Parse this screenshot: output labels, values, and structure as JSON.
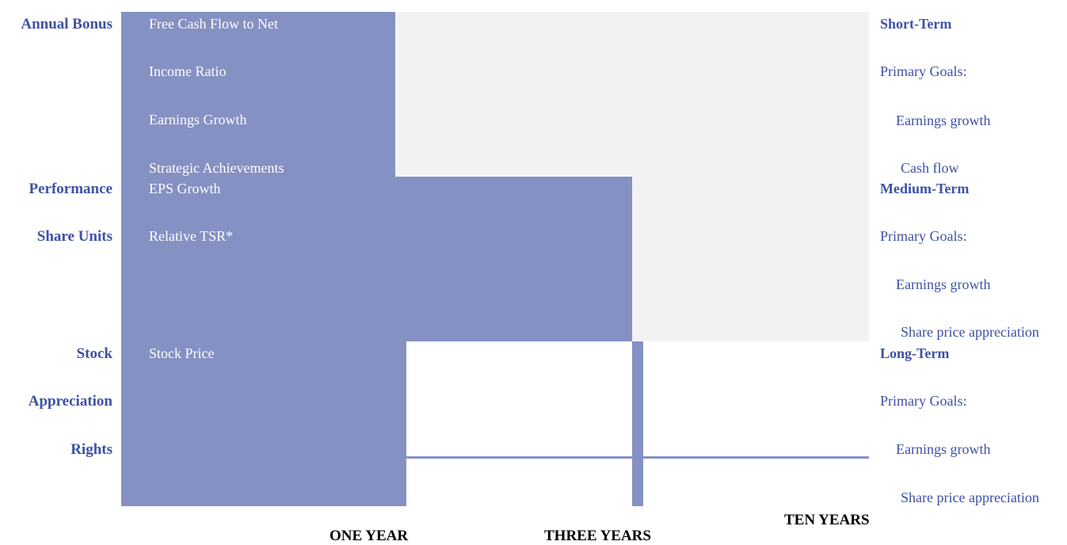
{
  "colors": {
    "bar": "#8591c3",
    "band": "#f2f2f2",
    "label": "#3f51a5",
    "metric_text": "#ffffff",
    "axis_text": "#000000"
  },
  "rows": {
    "annual_bonus": {
      "labels": [
        "Annual Bonus"
      ],
      "metrics": [
        "Free Cash Flow to Net",
        "Income Ratio",
        "Earnings Growth",
        "Strategic Achievements"
      ],
      "duration": "ONE YEAR"
    },
    "performance_share_units": {
      "labels": [
        "Performance",
        "Share Units"
      ],
      "metrics": [
        "EPS Growth",
        "Relative TSR*"
      ],
      "duration": "THREE YEARS"
    },
    "stock_appreciation_rights": {
      "labels": [
        "Stock",
        "Appreciation",
        "Rights"
      ],
      "metrics": [
        "Stock Price"
      ],
      "duration": "TEN YEARS"
    }
  },
  "goals": {
    "short_term": {
      "heading": "Short-Term",
      "primary": "Primary Goals:",
      "items": [
        "Earnings growth",
        "Cash flow"
      ]
    },
    "medium_term": {
      "heading": "Medium-Term",
      "primary": "Primary Goals:",
      "items": [
        "Earnings growth",
        "Share price appreciation"
      ]
    },
    "long_term": {
      "heading": "Long-Term",
      "primary": "Primary Goals:",
      "items": [
        "Earnings growth",
        "Share price appreciation"
      ]
    }
  },
  "axis": {
    "one_year": "ONE YEAR",
    "three_years": "THREE YEARS",
    "ten_years": "TEN YEARS"
  }
}
